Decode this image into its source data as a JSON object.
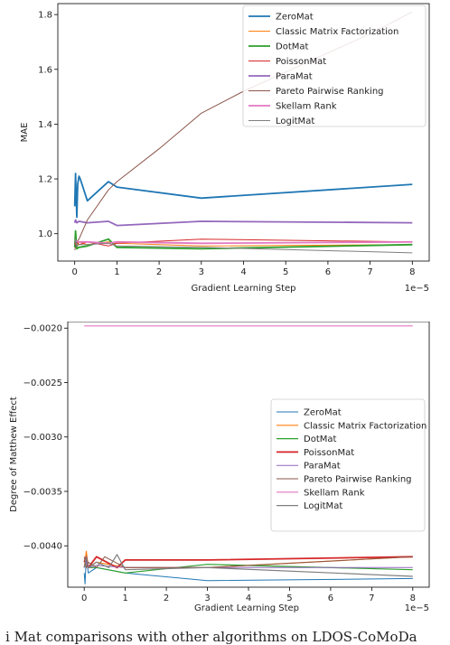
{
  "caption": "i Mat comparisons with other algorithms on LDOS-CoMoDa",
  "chart_data": [
    {
      "type": "line",
      "title": "",
      "xlabel": "Gradient Learning Step",
      "ylabel": "MAE",
      "x_multiplier": "1e−5",
      "xlim": [
        -0.4,
        8.4
      ],
      "ylim": [
        0.9,
        1.84
      ],
      "xticks": [
        0,
        1,
        2,
        3,
        4,
        5,
        6,
        7,
        8
      ],
      "yticks": [
        1.0,
        1.2,
        1.4,
        1.6,
        1.8
      ],
      "ytick_labels": [
        "1.0",
        "1.2",
        "1.4",
        "1.6",
        "1.8"
      ],
      "legend_position": "top-right",
      "series": [
        {
          "name": "ZeroMat",
          "color": "#1f77b4",
          "width": 1.8,
          "x": [
            0,
            0.02,
            0.05,
            0.07,
            0.1,
            0.13,
            0.3,
            0.8,
            1,
            3,
            8
          ],
          "y": [
            1.1,
            1.22,
            1.06,
            1.18,
            1.21,
            1.2,
            1.12,
            1.19,
            1.17,
            1.13,
            1.18
          ]
        },
        {
          "name": "Classic Matrix Factorization",
          "color": "#ff7f0e",
          "width": 1.0,
          "x": [
            0,
            0.02,
            0.05,
            0.1,
            0.3,
            0.8,
            1,
            3,
            8
          ],
          "y": [
            0.96,
            0.99,
            0.95,
            0.97,
            0.96,
            0.97,
            0.965,
            0.955,
            0.96
          ]
        },
        {
          "name": "DotMat",
          "color": "#2ca02c",
          "width": 1.8,
          "x": [
            0,
            0.02,
            0.05,
            0.1,
            0.3,
            0.8,
            1,
            3,
            8
          ],
          "y": [
            0.95,
            1.01,
            0.945,
            0.95,
            0.955,
            0.98,
            0.95,
            0.945,
            0.96
          ]
        },
        {
          "name": "PoissonMat",
          "color": "#d62728",
          "width": 1.0,
          "x": [
            0,
            0.02,
            0.05,
            0.1,
            0.3,
            0.8,
            1,
            3,
            8
          ],
          "y": [
            0.97,
            0.96,
            0.97,
            0.96,
            0.97,
            0.955,
            0.965,
            0.98,
            0.97
          ]
        },
        {
          "name": "ParaMat",
          "color": "#9467bd",
          "width": 1.8,
          "x": [
            0,
            0.02,
            0.05,
            0.1,
            0.3,
            0.8,
            1,
            3,
            8
          ],
          "y": [
            1.04,
            1.05,
            1.04,
            1.045,
            1.04,
            1.045,
            1.03,
            1.045,
            1.04
          ]
        },
        {
          "name": "Pareto Pairwise Ranking",
          "color": "#8c564b",
          "width": 1.0,
          "x": [
            0,
            0.05,
            0.1,
            0.3,
            0.8,
            1,
            2,
            3,
            4,
            5,
            6,
            7,
            8
          ],
          "y": [
            0.94,
            0.97,
            0.98,
            1.05,
            1.16,
            1.19,
            1.31,
            1.44,
            1.52,
            1.59,
            1.66,
            1.73,
            1.81
          ]
        },
        {
          "name": "Skellam Rank",
          "color": "#e377c2",
          "width": 1.8,
          "x": [
            0,
            0.1,
            0.3,
            0.8,
            1,
            3,
            8
          ],
          "y": [
            0.975,
            0.97,
            0.97,
            0.965,
            0.97,
            0.965,
            0.97
          ]
        },
        {
          "name": "LogitMat",
          "color": "#7f7f7f",
          "width": 1.0,
          "x": [
            0,
            0.02,
            0.05,
            0.1,
            0.3,
            0.8,
            1,
            3,
            8
          ],
          "y": [
            0.96,
            0.98,
            0.955,
            0.96,
            0.96,
            0.965,
            0.955,
            0.95,
            0.93
          ]
        }
      ]
    },
    {
      "type": "line",
      "title": "",
      "xlabel": "Gradient Learning Step",
      "ylabel": "Degree of Matthew Effect",
      "x_multiplier": "1e−5",
      "xlim": [
        -0.4,
        8.4
      ],
      "ylim": [
        -0.00438,
        -0.00194
      ],
      "xticks": [
        0,
        1,
        2,
        3,
        4,
        5,
        6,
        7,
        8
      ],
      "yticks": [
        -0.002,
        -0.0025,
        -0.003,
        -0.0035,
        -0.004
      ],
      "ytick_labels": [
        "−0.0020",
        "−0.0025",
        "−0.0030",
        "−0.0035",
        "−0.0040"
      ],
      "legend_position": "center-right",
      "series": [
        {
          "name": "ZeroMat",
          "color": "#1f77b4",
          "width": 1.0,
          "x": [
            0,
            0.02,
            0.05,
            0.1,
            0.3,
            1,
            3,
            8
          ],
          "y": [
            -0.00425,
            -0.00435,
            -0.0041,
            -0.00425,
            -0.0042,
            -0.00425,
            -0.00432,
            -0.0043
          ]
        },
        {
          "name": "Classic Matrix Factorization",
          "color": "#ff7f0e",
          "width": 1.2,
          "x": [
            0,
            0.05,
            0.1,
            0.3,
            1,
            3,
            8
          ],
          "y": [
            -0.0042,
            -0.00405,
            -0.0042,
            -0.00415,
            -0.0042,
            -0.0042,
            -0.0041
          ]
        },
        {
          "name": "DotMat",
          "color": "#2ca02c",
          "width": 1.2,
          "x": [
            0,
            0.05,
            0.1,
            0.3,
            1,
            3,
            8
          ],
          "y": [
            -0.0042,
            -0.00415,
            -0.0042,
            -0.0042,
            -0.00425,
            -0.00417,
            -0.00422
          ]
        },
        {
          "name": "PoissonMat",
          "color": "#d62728",
          "width": 1.8,
          "x": [
            0,
            0.05,
            0.1,
            0.3,
            0.8,
            1,
            3,
            8
          ],
          "y": [
            -0.00415,
            -0.0041,
            -0.0042,
            -0.0041,
            -0.0042,
            -0.00413,
            -0.00413,
            -0.0041
          ]
        },
        {
          "name": "ParaMat",
          "color": "#9467bd",
          "width": 1.0,
          "x": [
            0,
            0.05,
            0.1,
            0.3,
            1,
            3,
            8
          ],
          "y": [
            -0.0042,
            -0.00415,
            -0.0042,
            -0.00418,
            -0.0042,
            -0.0042,
            -0.0042
          ]
        },
        {
          "name": "Pareto Pairwise Ranking",
          "color": "#8c564b",
          "width": 1.0,
          "x": [
            0,
            0.05,
            0.1,
            0.3,
            0.5,
            1,
            3,
            8
          ],
          "y": [
            -0.0041,
            -0.0042,
            -0.00415,
            -0.0042,
            -0.0041,
            -0.0042,
            -0.0042,
            -0.0041
          ]
        },
        {
          "name": "Skellam Rank",
          "color": "#e377c2",
          "width": 1.2,
          "x": [
            0,
            8
          ],
          "y": [
            -0.00198,
            -0.00198
          ]
        },
        {
          "name": "LogitMat",
          "color": "#7f7f7f",
          "width": 1.2,
          "x": [
            0,
            0.05,
            0.1,
            0.3,
            0.6,
            0.8,
            1,
            3,
            8
          ],
          "y": [
            -0.0042,
            -0.0041,
            -0.0042,
            -0.00415,
            -0.0042,
            -0.00408,
            -0.00422,
            -0.0042,
            -0.00428
          ]
        }
      ]
    }
  ]
}
